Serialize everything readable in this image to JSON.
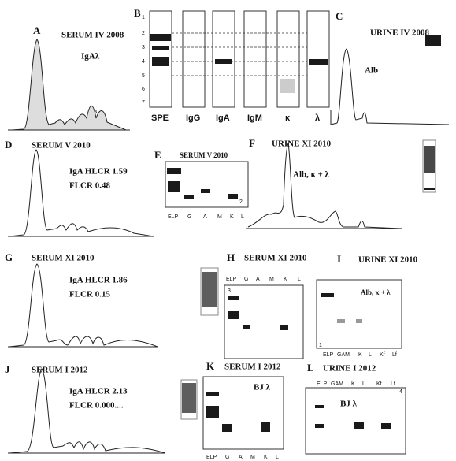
{
  "panels": [
    {
      "letter": "A",
      "title": "SERUM IV 2008",
      "notes": [
        "IgAλ",
        "B"
      ]
    },
    {
      "letter": "B",
      "lane_numbers": [
        "1",
        "2",
        "3",
        "4",
        "5",
        "6",
        "7"
      ],
      "lanes": [
        "SPE",
        "IgG",
        "IgA",
        "IgM",
        "κ",
        "λ"
      ]
    },
    {
      "letter": "C",
      "title": "URINE IV 2008",
      "notes": [
        "Alb"
      ]
    },
    {
      "letter": "D",
      "title": "SERUM V 2010",
      "notes": [
        "IgA HLCR 1.59",
        "FLCR 0.48"
      ]
    },
    {
      "letter": "E",
      "title": "SERUM V 2010",
      "lanes": [
        "ELP",
        "G",
        "A",
        "M",
        "K",
        "L"
      ],
      "notes": [
        "2"
      ]
    },
    {
      "letter": "F",
      "title": "URINE XI 2010",
      "notes": [
        "Alb, κ + λ"
      ]
    },
    {
      "letter": "G",
      "title": "SERUM XI 2010",
      "notes": [
        "IgA HLCR 1.86",
        "FLCR 0.15"
      ]
    },
    {
      "letter": "H",
      "title": "SERUM XI 2010",
      "lanes": [
        "ELP",
        "G",
        "A",
        "M",
        "K",
        "L"
      ],
      "notes": [
        "3"
      ]
    },
    {
      "letter": "I",
      "title": "URINE XI 2010",
      "lanes": [
        "ELP",
        "GAM",
        "K",
        "L",
        "Kf",
        "Lf"
      ],
      "notes": [
        "Alb, κ + λ",
        "1"
      ]
    },
    {
      "letter": "J",
      "title": "SERUM I 2012",
      "notes": [
        "IgA HLCR 2.13",
        "FLCR 0.000...."
      ]
    },
    {
      "letter": "K",
      "title": "SERUM I 2012",
      "lanes": [
        "ELP",
        "G",
        "A",
        "M",
        "K",
        "L"
      ],
      "notes": [
        "BJ λ"
      ]
    },
    {
      "letter": "L",
      "title": "URINE I 2012",
      "lanes": [
        "ELP",
        "GAM",
        "K",
        "L",
        "Kf",
        "Lf"
      ],
      "notes": [
        "BJ λ",
        "4"
      ]
    }
  ]
}
